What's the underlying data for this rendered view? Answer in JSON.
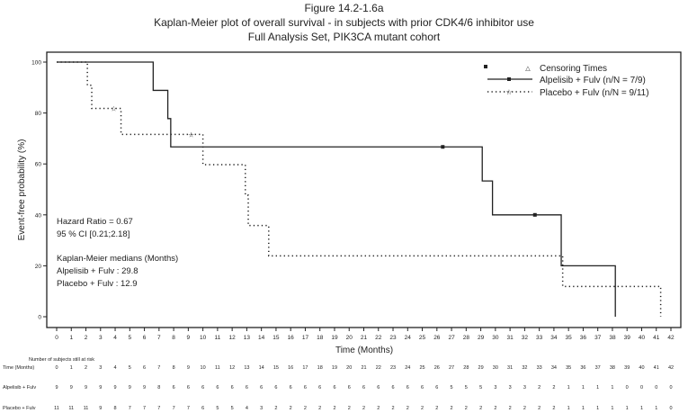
{
  "title_lines": [
    "Figure 14.2-1.6a",
    "Kaplan-Meier plot of overall survival - in subjects with prior CDK4/6 inhibitor use",
    "Full Analysis Set, PIK3CA mutant cohort"
  ],
  "chart_data": {
    "type": "line",
    "subtype": "kaplan-meier step",
    "xlabel": "Time (Months)",
    "ylabel": "Event-free probability (%)",
    "xlim": [
      0,
      42
    ],
    "ylim": [
      0,
      100
    ],
    "x_ticks": [
      0,
      1,
      2,
      3,
      4,
      5,
      6,
      7,
      8,
      9,
      10,
      11,
      12,
      13,
      14,
      15,
      16,
      17,
      18,
      19,
      20,
      21,
      22,
      23,
      24,
      25,
      26,
      27,
      28,
      29,
      30,
      31,
      32,
      33,
      34,
      35,
      36,
      37,
      38,
      39,
      40,
      41,
      42
    ],
    "y_ticks": [
      0,
      20,
      40,
      60,
      80,
      100
    ],
    "grid": false,
    "legend_position": "top-right",
    "legend": {
      "censoring_label": "Censoring Times",
      "entries": [
        "Alpelisib + Fulv (n/N = 7/9)",
        "Placebo + Fulv (n/N = 9/11)"
      ]
    },
    "series": [
      {
        "name": "Alpelisib + Fulv (n/N = 7/9)",
        "line_style": "solid",
        "steps": [
          [
            0,
            100
          ],
          [
            6.6,
            88.9
          ],
          [
            7.6,
            77.8
          ],
          [
            7.8,
            66.7
          ],
          [
            29.1,
            53.3
          ],
          [
            29.8,
            40.0
          ],
          [
            34.5,
            20.0
          ],
          [
            38.2,
            0
          ]
        ],
        "censored": [
          [
            26.4,
            66.7
          ],
          [
            32.7,
            40.0
          ]
        ]
      },
      {
        "name": "Placebo + Fulv (n/N = 9/11)",
        "line_style": "dotted",
        "steps": [
          [
            0,
            100
          ],
          [
            2.1,
            90.9
          ],
          [
            2.4,
            81.8
          ],
          [
            4.4,
            71.6
          ],
          [
            10.0,
            59.7
          ],
          [
            12.9,
            47.7
          ],
          [
            13.1,
            35.8
          ],
          [
            14.5,
            23.9
          ],
          [
            34.6,
            11.9
          ],
          [
            41.3,
            0
          ]
        ],
        "censored": [
          [
            3.9,
            81.8
          ],
          [
            9.2,
            71.6
          ]
        ]
      }
    ],
    "annotations": [
      "Hazard Ratio = 0.67",
      "95 % CI [0.21;2.18]",
      "Kaplan-Meier medians (Months)",
      "Alpelisib + Fulv : 29.8",
      "Placebo + Fulv : 12.9"
    ],
    "risk_table": {
      "title": "Number of subjects still at risk",
      "header_label": "Time (Months)",
      "rows": [
        {
          "label": "Alpelisib + Fulv",
          "values": [
            9,
            9,
            9,
            9,
            9,
            9,
            9,
            8,
            6,
            6,
            6,
            6,
            6,
            6,
            6,
            6,
            6,
            6,
            6,
            6,
            6,
            6,
            6,
            6,
            6,
            6,
            6,
            5,
            5,
            5,
            3,
            3,
            3,
            2,
            2,
            1,
            1,
            1,
            1,
            0,
            0,
            0,
            0
          ]
        },
        {
          "label": "Placebo + Fulv",
          "values": [
            11,
            11,
            11,
            9,
            8,
            7,
            7,
            7,
            7,
            7,
            6,
            5,
            5,
            4,
            3,
            2,
            2,
            2,
            2,
            2,
            2,
            2,
            2,
            2,
            2,
            2,
            2,
            2,
            2,
            2,
            2,
            2,
            2,
            2,
            2,
            1,
            1,
            1,
            1,
            1,
            1,
            1,
            0
          ]
        }
      ]
    }
  }
}
